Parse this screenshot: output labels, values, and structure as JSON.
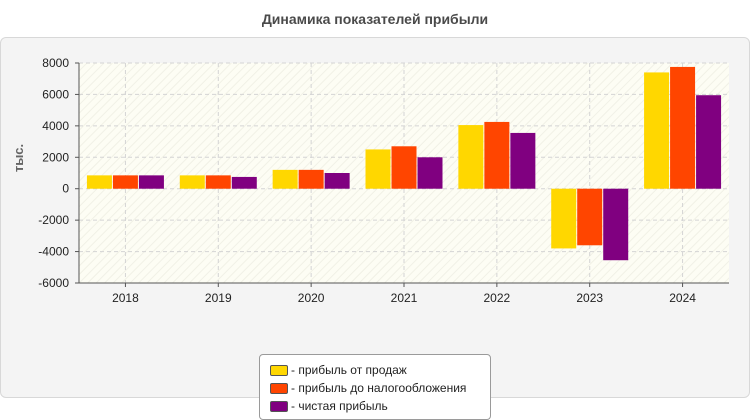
{
  "chart_data": {
    "type": "bar",
    "title": "Динамика показателей прибыли",
    "ylabel": "тыс.",
    "xlabel": "",
    "ylim": [
      -6000,
      8000
    ],
    "yticks": [
      8000,
      6000,
      4000,
      2000,
      0,
      -2000,
      -4000,
      -6000
    ],
    "grid": true,
    "legend_position": "bottom",
    "categories": [
      "2018",
      "2019",
      "2020",
      "2021",
      "2022",
      "2023",
      "2024"
    ],
    "series": [
      {
        "name": "- прибыль от продаж",
        "color": "#FFD700",
        "values": [
          850,
          850,
          1200,
          2500,
          4050,
          -3800,
          7400
        ]
      },
      {
        "name": "- прибыль до налогообложения",
        "color": "#FF4500",
        "values": [
          850,
          850,
          1200,
          2700,
          4250,
          -3600,
          7750
        ]
      },
      {
        "name": "- чистая прибыль",
        "color": "#800080",
        "values": [
          850,
          750,
          1000,
          2000,
          3550,
          -4550,
          5950
        ]
      }
    ]
  }
}
